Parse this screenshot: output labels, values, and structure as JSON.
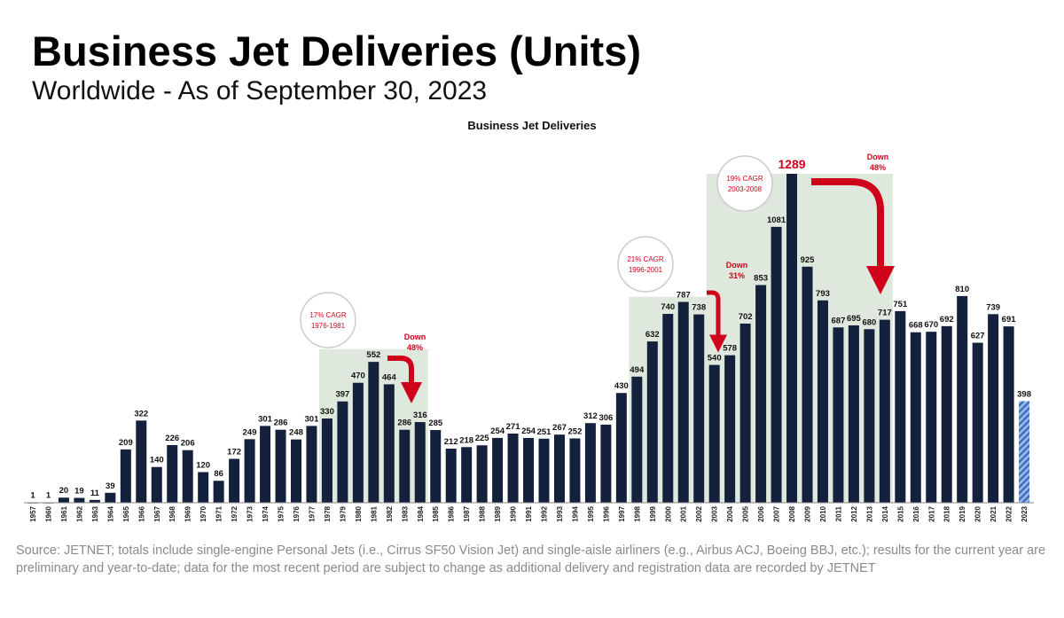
{
  "title": "Business Jet Deliveries (Units)",
  "subtitle": "Worldwide - As of September 30, 2023",
  "source": "Source: JETNET; totals include single-engine Personal Jets (i.e., Cirrus SF50 Vision Jet) and single-aisle airliners (e.g., Airbus ACJ, Boeing BBJ, etc.); results for the current year are preliminary and year-to-date; data for the most recent period are subject to change as additional delivery and registration data are recorded by JETNET",
  "chart_data": {
    "type": "bar",
    "title": "Business Jet Deliveries",
    "xlabel": "",
    "ylabel": "",
    "ylim": [
      0,
      1300
    ],
    "grid": false,
    "colors": {
      "bar": "#14213d",
      "partial_year": "#4a7cc9",
      "highlight": "#dfe8dc",
      "annotation": "#d0021b"
    },
    "categories": [
      "1957",
      "1960",
      "1961",
      "1962",
      "1963",
      "1964",
      "1965",
      "1966",
      "1967",
      "1968",
      "1969",
      "1970",
      "1971",
      "1972",
      "1973",
      "1974",
      "1975",
      "1976",
      "1977",
      "1978",
      "1979",
      "1980",
      "1981",
      "1982",
      "1983",
      "1984",
      "1985",
      "1986",
      "1987",
      "1988",
      "1989",
      "1990",
      "1991",
      "1992",
      "1993",
      "1994",
      "1995",
      "1996",
      "1997",
      "1998",
      "1999",
      "2000",
      "2001",
      "2002",
      "2003",
      "2004",
      "2005",
      "2006",
      "2007",
      "2008",
      "2009",
      "2010",
      "2011",
      "2012",
      "2013",
      "2014",
      "2015",
      "2016",
      "2017",
      "2018",
      "2019",
      "2020",
      "2021",
      "2022",
      "2023"
    ],
    "values": [
      1,
      1,
      20,
      19,
      11,
      39,
      209,
      322,
      140,
      226,
      206,
      120,
      86,
      172,
      249,
      301,
      286,
      248,
      301,
      330,
      397,
      470,
      552,
      464,
      286,
      316,
      285,
      212,
      218,
      225,
      254,
      271,
      254,
      251,
      267,
      252,
      312,
      306,
      430,
      494,
      632,
      740,
      787,
      738,
      540,
      578,
      702,
      853,
      1081,
      1289,
      925,
      793,
      687,
      695,
      680,
      717,
      751,
      668,
      670,
      692,
      810,
      627,
      739,
      691,
      398
    ],
    "partial_year": "2023",
    "annotations": [
      {
        "type": "cagr",
        "line1": "17% CAGR",
        "line2": "1976-1981"
      },
      {
        "type": "down",
        "line1": "Down",
        "line2": "48%"
      },
      {
        "type": "cagr",
        "line1": "21% CAGR",
        "line2": "1996-2001"
      },
      {
        "type": "down",
        "line1": "Down",
        "line2": "31%"
      },
      {
        "type": "cagr",
        "line1": "19% CAGR",
        "line2": "2003-2008"
      },
      {
        "type": "down",
        "line1": "Down",
        "line2": "48%"
      }
    ]
  }
}
